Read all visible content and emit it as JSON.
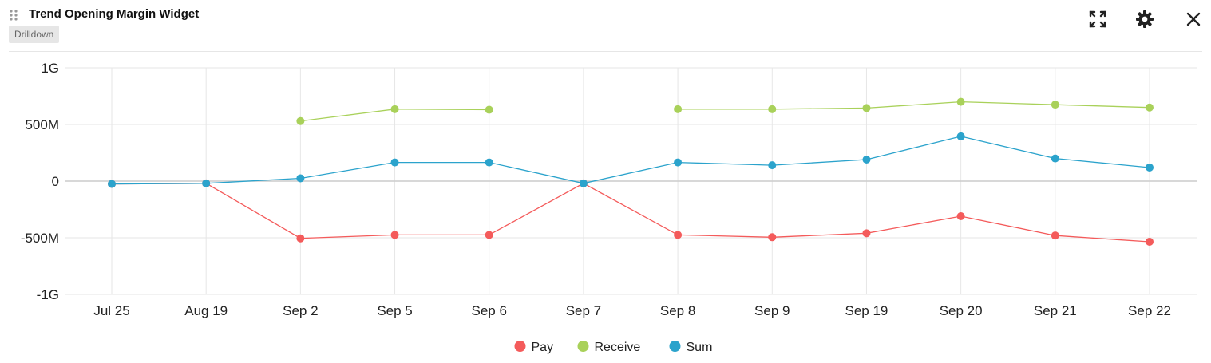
{
  "widget": {
    "title": "Trend Opening Margin Widget",
    "drilldown_label": "Drilldown",
    "icons": [
      "drag-handle-icon",
      "expand-icon",
      "gear-icon",
      "close-icon"
    ]
  },
  "chart_data": {
    "type": "line",
    "title": "Trend Opening Margin Widget",
    "xlabel": "",
    "ylabel": "",
    "categories": [
      "Jul 25",
      "Aug 19",
      "Sep 2",
      "Sep 5",
      "Sep 6",
      "Sep 7",
      "Sep 8",
      "Sep 9",
      "Sep 19",
      "Sep 20",
      "Sep 21",
      "Sep 22"
    ],
    "ylim": [
      -1000000000,
      1000000000
    ],
    "yticks": [
      {
        "value": 1000000000,
        "label": "1G"
      },
      {
        "value": 500000000,
        "label": "500M"
      },
      {
        "value": 0,
        "label": "0"
      },
      {
        "value": -500000000,
        "label": "-500M"
      },
      {
        "value": -1000000000,
        "label": "-1G"
      }
    ],
    "grid": true,
    "legend_position": "bottom",
    "series": [
      {
        "name": "Pay",
        "color": "#f45b5b",
        "values": [
          -25000000,
          -20000000,
          -505000000,
          -475000000,
          -475000000,
          -20000000,
          -475000000,
          -495000000,
          -460000000,
          -310000000,
          -480000000,
          -535000000
        ]
      },
      {
        "name": "Receive",
        "color": "#a9d15a",
        "values": [
          null,
          null,
          530000000,
          635000000,
          630000000,
          null,
          635000000,
          635000000,
          645000000,
          700000000,
          675000000,
          650000000
        ]
      },
      {
        "name": "Sum",
        "color": "#2ba3cc",
        "values": [
          -25000000,
          -20000000,
          25000000,
          165000000,
          165000000,
          -20000000,
          165000000,
          140000000,
          190000000,
          395000000,
          200000000,
          120000000
        ]
      }
    ]
  }
}
